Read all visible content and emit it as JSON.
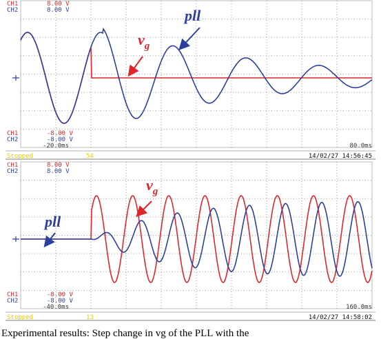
{
  "panels": [
    {
      "ch1_label": "CH1",
      "ch2_label": "CH2",
      "ch1_scale": "8.00 V",
      "ch2_scale": "8.00 V",
      "ch1_min": "-8.00 V",
      "ch2_min": "-8.00 V",
      "t_start": "-20.0ms",
      "t_end": "80.0ms",
      "status": "Stopped",
      "count": "54",
      "timestamp": "14/02/27 14:56:45",
      "pll_label": "pll",
      "vg_label": "v",
      "vg_sub": "g"
    },
    {
      "ch1_label": "CH1",
      "ch2_label": "CH2",
      "ch1_scale": "8.00 V",
      "ch2_scale": "8.00 V",
      "ch1_min": "-8.00 V",
      "ch2_min": "-8.00 V",
      "t_start": "-40.0ms",
      "t_end": "160.0ms",
      "status": "Stopped",
      "count": "13",
      "timestamp": "14/02/27 14:58:02",
      "pll_label": "pll",
      "vg_label": "v",
      "vg_sub": "g"
    }
  ],
  "caption": "Experimental results: Step change in vg of the PLL with the"
}
